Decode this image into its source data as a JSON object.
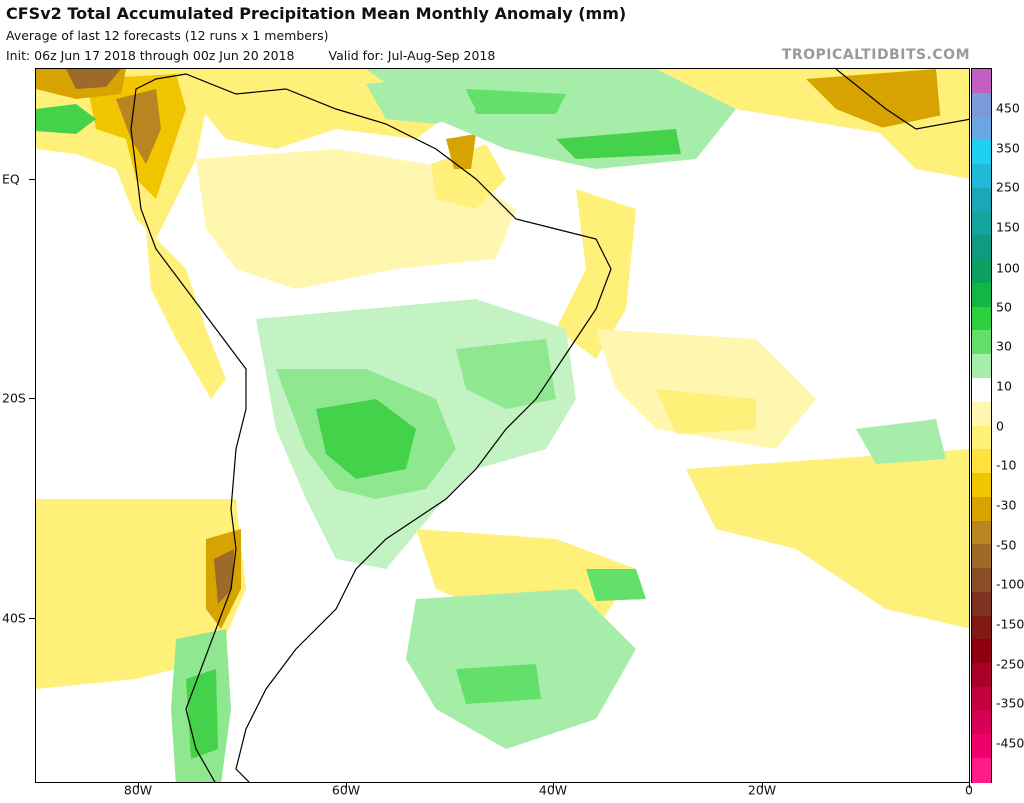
{
  "header": {
    "title": "CFSv2 Total Accumulated Precipitation Mean Monthly Anomaly (mm)",
    "subtitle": "Average of last 12 forecasts (12 runs x 1 members)",
    "init": "Init: 06z Jun 17 2018 through 00z Jun 20 2018",
    "valid": "Valid for: Jul-Aug-Sep 2018",
    "brand": "TROPICALTIDBITS.COM"
  },
  "axes": {
    "lat_labels": [
      "EQ",
      "20S",
      "40S"
    ],
    "lon_labels": [
      "80W",
      "60W",
      "40W",
      "20W",
      "0"
    ]
  },
  "colorbar": {
    "labels": [
      "450",
      "350",
      "250",
      "150",
      "100",
      "50",
      "30",
      "10",
      "0",
      "-10",
      "-30",
      "-50",
      "-100",
      "-150",
      "-250",
      "-350",
      "-450"
    ],
    "colors": [
      "#c45ec0",
      "#7c9ad8",
      "#6aa6e3",
      "#20d0f0",
      "#22b8d8",
      "#1aa8b8",
      "#15a5a0",
      "#109a80",
      "#0ca060",
      "#10b843",
      "#2dd140",
      "#62e06a",
      "#a5eda8",
      "#ffffff",
      "#fff7b0",
      "#fff07a",
      "#ffe13e",
      "#f1c500",
      "#d7a300",
      "#b88520",
      "#9d6a2a",
      "#8a4e27",
      "#7e3222",
      "#811a14",
      "#8e0010",
      "#a9002a",
      "#c4003e",
      "#d80056",
      "#f0006a",
      "#ff1c88"
    ]
  },
  "map": {
    "field_colors": {
      "dry1": "#fff7b0",
      "dry2": "#fff07a",
      "dry3": "#ffe13e",
      "dry4": "#f1c500",
      "dry5": "#d7a300",
      "dry6": "#b88520",
      "dry7": "#9d6a2a",
      "wet1": "#c3f2c3",
      "wet2": "#8fe88f",
      "wet3": "#43d24a",
      "wet4": "#10b843"
    }
  }
}
